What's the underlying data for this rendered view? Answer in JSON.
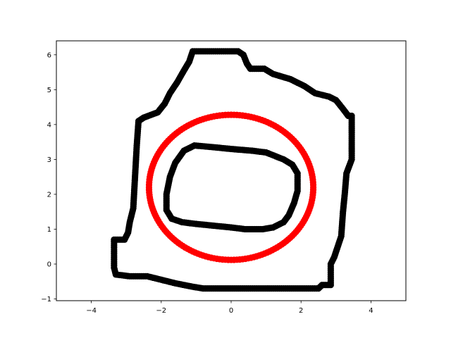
{
  "chart_data": {
    "type": "scatter",
    "title": "",
    "xlabel": "",
    "ylabel": "",
    "xlim": [
      -5,
      5
    ],
    "ylim": [
      -1.05,
      6.4
    ],
    "x_ticks": [
      -4,
      -2,
      0,
      2,
      4
    ],
    "y_ticks": [
      -1,
      0,
      1,
      2,
      3,
      4,
      5,
      6
    ],
    "x_tick_labels": [
      "−4",
      "−2",
      "0",
      "2",
      "4"
    ],
    "y_tick_labels": [
      "−1",
      "0",
      "1",
      "2",
      "3",
      "4",
      "5",
      "6"
    ],
    "grid": false,
    "legend": "none",
    "series": [
      {
        "color": "#000000",
        "shape": "closed",
        "points": [
          [
            -1.1,
            6.1
          ],
          [
            0.2,
            6.1
          ],
          [
            0.35,
            6.0
          ],
          [
            0.45,
            5.75
          ],
          [
            0.55,
            5.6
          ],
          [
            0.95,
            5.6
          ],
          [
            1.2,
            5.45
          ],
          [
            1.7,
            5.3
          ],
          [
            2.1,
            5.1
          ],
          [
            2.4,
            4.9
          ],
          [
            2.8,
            4.8
          ],
          [
            3.0,
            4.7
          ],
          [
            3.2,
            4.45
          ],
          [
            3.35,
            4.25
          ],
          [
            3.45,
            4.25
          ],
          [
            3.45,
            3.0
          ],
          [
            3.3,
            2.6
          ],
          [
            3.25,
            2.0
          ],
          [
            3.2,
            1.5
          ],
          [
            3.15,
            0.8
          ],
          [
            3.05,
            0.5
          ],
          [
            2.95,
            0.2
          ],
          [
            2.85,
            0.0
          ],
          [
            2.85,
            -0.6
          ],
          [
            2.6,
            -0.6
          ],
          [
            2.5,
            -0.7
          ],
          [
            1.5,
            -0.7
          ],
          [
            0.5,
            -0.7
          ],
          [
            -0.4,
            -0.7
          ],
          [
            -0.8,
            -0.7
          ],
          [
            -1.1,
            -0.65
          ],
          [
            -1.6,
            -0.55
          ],
          [
            -2.0,
            -0.45
          ],
          [
            -2.4,
            -0.35
          ],
          [
            -2.9,
            -0.35
          ],
          [
            -3.3,
            -0.3
          ],
          [
            -3.35,
            -0.1
          ],
          [
            -3.35,
            0.7
          ],
          [
            -3.05,
            0.7
          ],
          [
            -2.95,
            0.9
          ],
          [
            -2.9,
            1.2
          ],
          [
            -2.8,
            1.6
          ],
          [
            -2.75,
            2.5
          ],
          [
            -2.7,
            3.4
          ],
          [
            -2.65,
            4.1
          ],
          [
            -2.5,
            4.2
          ],
          [
            -2.1,
            4.35
          ],
          [
            -1.9,
            4.6
          ],
          [
            -1.75,
            4.9
          ],
          [
            -1.55,
            5.2
          ],
          [
            -1.35,
            5.55
          ],
          [
            -1.2,
            5.8
          ]
        ]
      },
      {
        "color": "#ff0000",
        "shape": "ellipse",
        "center": [
          0.0,
          2.2
        ],
        "radius_x": 2.35,
        "radius_y": 2.08
      },
      {
        "color": "#000000",
        "shape": "closed",
        "points": [
          [
            -1.05,
            3.4
          ],
          [
            -0.5,
            3.35
          ],
          [
            0.0,
            3.3
          ],
          [
            0.6,
            3.25
          ],
          [
            1.0,
            3.2
          ],
          [
            1.5,
            3.0
          ],
          [
            1.75,
            2.85
          ],
          [
            1.9,
            2.6
          ],
          [
            1.9,
            2.1
          ],
          [
            1.8,
            1.75
          ],
          [
            1.65,
            1.4
          ],
          [
            1.5,
            1.2
          ],
          [
            1.2,
            1.05
          ],
          [
            0.9,
            1.0
          ],
          [
            0.4,
            1.0
          ],
          [
            0.0,
            1.05
          ],
          [
            -0.5,
            1.1
          ],
          [
            -1.0,
            1.15
          ],
          [
            -1.4,
            1.2
          ],
          [
            -1.7,
            1.3
          ],
          [
            -1.85,
            1.55
          ],
          [
            -1.85,
            2.0
          ],
          [
            -1.75,
            2.5
          ],
          [
            -1.6,
            2.9
          ],
          [
            -1.35,
            3.25
          ]
        ]
      }
    ]
  }
}
